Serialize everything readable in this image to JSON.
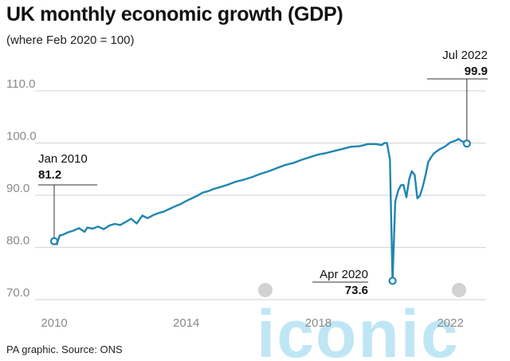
{
  "title": "UK monthly economic growth (GDP)",
  "subtitle": "(where Feb 2020 = 100)",
  "source": "PA graphic. Source: ONS",
  "watermark": "iconic",
  "colors": {
    "line": "#1f86b0",
    "grid": "#d9d9d9",
    "watermark": "#bfe6f5"
  },
  "chart_data": {
    "type": "line",
    "title": "UK monthly economic growth (GDP)",
    "subtitle": "(where Feb 2020 = 100)",
    "xlabel": "",
    "ylabel": "",
    "ylim": [
      70,
      110
    ],
    "xlim": [
      2010,
      2022.6
    ],
    "yticks": [
      "70.0",
      "80.0",
      "90.0",
      "100.0",
      "110.0"
    ],
    "xticks": [
      "2010",
      "2014",
      "2018",
      "2022"
    ],
    "grid": true,
    "legend": "none",
    "series": [
      {
        "x": [
          2010.0,
          2010.08,
          2010.17,
          2010.25,
          2010.42,
          2010.58,
          2010.75,
          2010.92,
          2011.0,
          2011.17,
          2011.33,
          2011.5,
          2011.67,
          2011.83,
          2012.0,
          2012.17,
          2012.33,
          2012.5,
          2012.67,
          2012.83,
          2013.0,
          2013.17,
          2013.33,
          2013.5,
          2013.67,
          2013.83,
          2014.0,
          2014.17,
          2014.33,
          2014.5,
          2014.67,
          2014.83,
          2015.0,
          2015.25,
          2015.5,
          2015.75,
          2016.0,
          2016.25,
          2016.5,
          2016.75,
          2017.0,
          2017.25,
          2017.5,
          2017.75,
          2018.0,
          2018.25,
          2018.5,
          2018.75,
          2019.0,
          2019.25,
          2019.5,
          2019.75,
          2019.92,
          2020.0,
          2020.08,
          2020.17,
          2020.25,
          2020.33,
          2020.42,
          2020.5,
          2020.58,
          2020.67,
          2020.75,
          2020.83,
          2020.92,
          2021.0,
          2021.08,
          2021.17,
          2021.25,
          2021.33,
          2021.42,
          2021.5,
          2021.67,
          2021.83,
          2022.0,
          2022.17,
          2022.25,
          2022.33,
          2022.42,
          2022.5
        ],
        "values": [
          81.2,
          80.6,
          82.3,
          82.4,
          82.9,
          83.2,
          83.7,
          83.0,
          83.8,
          83.6,
          84.0,
          83.5,
          84.2,
          84.5,
          84.3,
          84.9,
          85.5,
          84.6,
          86.1,
          85.6,
          86.2,
          86.6,
          86.9,
          87.4,
          87.9,
          88.3,
          88.9,
          89.4,
          89.9,
          90.5,
          90.8,
          91.2,
          91.5,
          92.0,
          92.6,
          93.0,
          93.5,
          94.1,
          94.6,
          95.2,
          95.8,
          96.2,
          96.8,
          97.3,
          97.8,
          98.1,
          98.5,
          98.9,
          99.3,
          99.4,
          99.8,
          99.8,
          99.6,
          100.0,
          100.0,
          96.9,
          73.6,
          88.8,
          90.9,
          91.9,
          92.0,
          89.6,
          93.0,
          94.6,
          93.9,
          89.4,
          89.9,
          91.8,
          93.9,
          96.4,
          97.3,
          98.0,
          98.8,
          99.3,
          100.1,
          100.5,
          100.8,
          100.4,
          100.2,
          99.9
        ]
      }
    ],
    "annotations": [
      {
        "label": "Jan 2010",
        "value": "81.2",
        "x": 2010.0,
        "y": 81.2
      },
      {
        "label": "Apr 2020",
        "value": "73.6",
        "x": 2020.25,
        "y": 73.6
      },
      {
        "label": "Jul 2022",
        "value": "99.9",
        "x": 2022.5,
        "y": 99.9
      }
    ]
  }
}
